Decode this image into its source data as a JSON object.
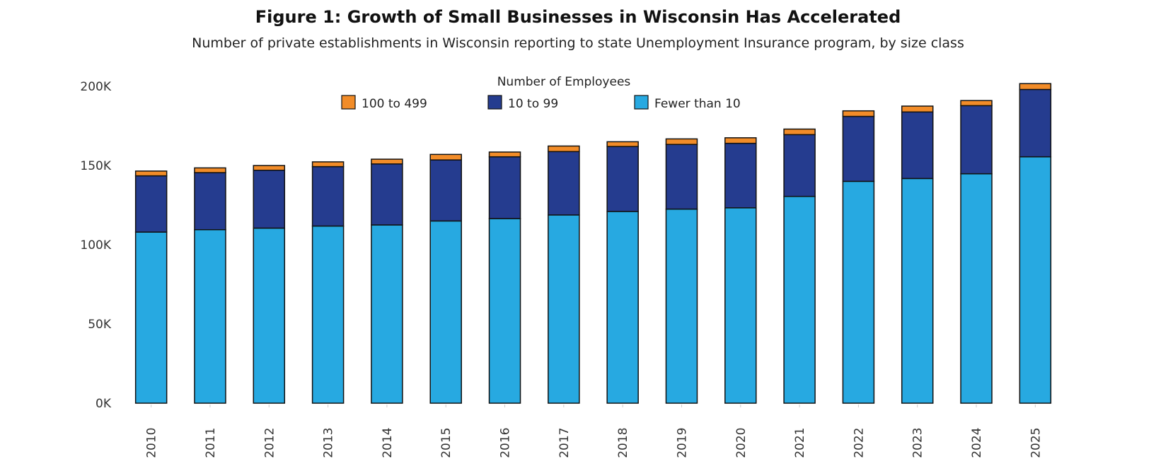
{
  "title": "Figure 1: Growth of Small Businesses in Wisconsin Has Accelerated",
  "subtitle": "Number of private establishments in Wisconsin reporting to state Unemployment Insurance program, by size class",
  "chart_data": {
    "type": "bar",
    "stacked": true,
    "categories": [
      "2010",
      "2011",
      "2012",
      "2013",
      "2014",
      "2015",
      "2016",
      "2017",
      "2018",
      "2019",
      "2020",
      "2021",
      "2022",
      "2023",
      "2024",
      "2025"
    ],
    "series": [
      {
        "name": "Fewer than 10",
        "color": "#27a9e1",
        "values": [
          108000,
          109500,
          110500,
          111800,
          112500,
          115000,
          116500,
          118800,
          121000,
          122500,
          123300,
          130500,
          140000,
          141800,
          144800,
          155500
        ]
      },
      {
        "name": "10 to 99",
        "color": "#253c8f",
        "values": [
          35500,
          36000,
          36500,
          37500,
          38500,
          38500,
          39000,
          40000,
          41000,
          40800,
          40700,
          39000,
          41000,
          42000,
          43000,
          42500
        ]
      },
      {
        "name": "100 to 499",
        "color": "#f28c28",
        "values": [
          3000,
          3000,
          3000,
          3000,
          3000,
          3500,
          3000,
          3500,
          3000,
          3500,
          3500,
          3500,
          3500,
          3700,
          3200,
          3700
        ]
      }
    ],
    "legend_title": "Number of Employees",
    "legend_order": [
      "100 to 499",
      "10 to 99",
      "Fewer than 10"
    ],
    "legend_position": "top-center",
    "y_tick_labels": [
      "0K",
      "50K",
      "100K",
      "150K",
      "200K"
    ],
    "y_ticks": [
      0,
      50000,
      100000,
      150000,
      200000
    ],
    "ylim": [
      0,
      200000
    ],
    "grid": false,
    "x_label_rotation": "vertical"
  }
}
